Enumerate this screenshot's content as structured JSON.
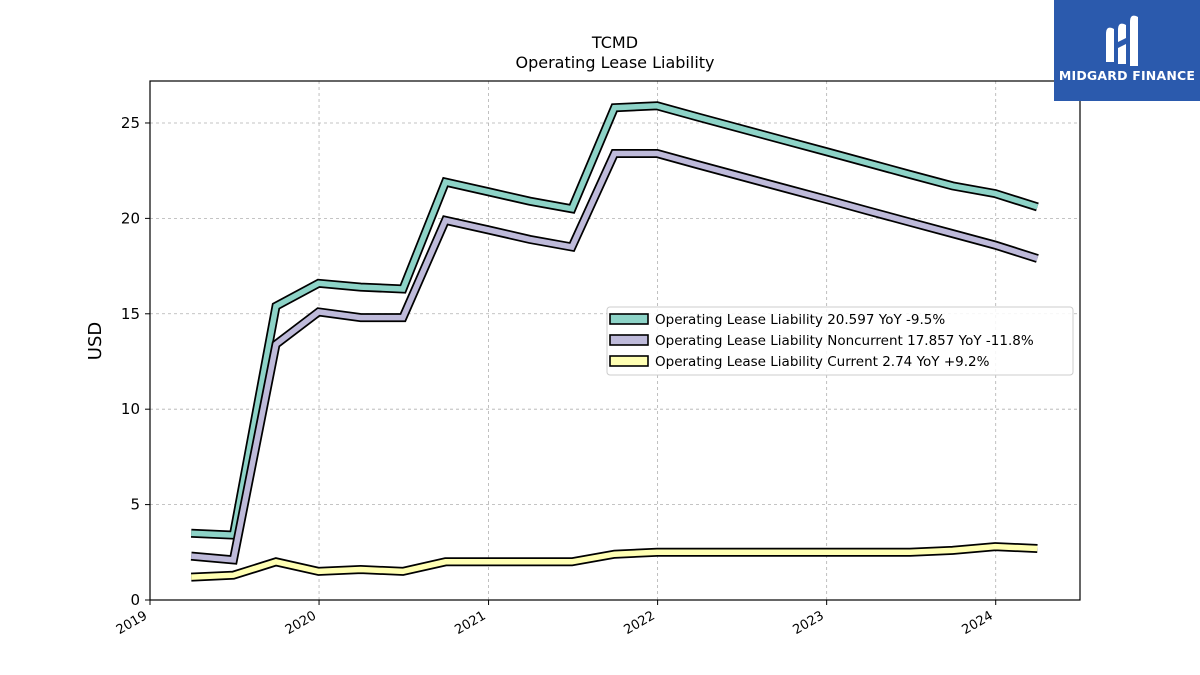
{
  "chart_data": {
    "type": "line",
    "title": "TCMD",
    "subtitle": "Operating Lease Liability",
    "xlabel": "",
    "ylabel": "USD",
    "x_ticks": [
      "2019",
      "2020",
      "2021",
      "2022",
      "2023",
      "2024"
    ],
    "y_ticks": [
      "0",
      "5",
      "10",
      "15",
      "20",
      "25"
    ],
    "xlim": [
      "2019-01-01",
      "2024-07-01"
    ],
    "ylim": [
      0,
      27.2
    ],
    "grid": true,
    "legend_position": "center-right",
    "x": [
      "2019-03-31",
      "2019-06-30",
      "2019-09-30",
      "2019-12-31",
      "2020-03-31",
      "2020-06-30",
      "2020-09-30",
      "2020-12-31",
      "2021-03-31",
      "2021-06-30",
      "2021-09-30",
      "2021-12-31",
      "2022-03-31",
      "2022-06-30",
      "2022-09-30",
      "2022-12-31",
      "2023-03-31",
      "2023-06-30",
      "2023-09-30",
      "2023-12-31",
      "2024-03-31"
    ],
    "series": [
      {
        "name": "Operating Lease Liability",
        "legend": "Operating Lease Liability  20.597 YoY -9.5%",
        "color": "#8dd3c7",
        "values": [
          3.5,
          3.4,
          15.4,
          16.6,
          16.4,
          16.3,
          21.9,
          21.4,
          20.9,
          20.5,
          25.8,
          25.9,
          25.3,
          24.7,
          24.1,
          23.5,
          22.9,
          22.3,
          21.7,
          21.3,
          20.6
        ]
      },
      {
        "name": "Operating Lease Liability Noncurrent",
        "legend": "Operating Lease Liability Noncurrent  17.857 YoY -11.8%",
        "color": "#bebada",
        "values": [
          2.3,
          2.1,
          13.4,
          15.1,
          14.8,
          14.8,
          19.9,
          19.4,
          18.9,
          18.5,
          23.4,
          23.4,
          22.8,
          22.2,
          21.6,
          21.0,
          20.4,
          19.8,
          19.2,
          18.6,
          17.9
        ]
      },
      {
        "name": "Operating Lease Liability Current",
        "legend": "Operating Lease Liability Current  2.74 YoY +9.2%",
        "color": "#ffffb3",
        "values": [
          1.2,
          1.3,
          2.0,
          1.5,
          1.6,
          1.5,
          2.0,
          2.0,
          2.0,
          2.0,
          2.4,
          2.5,
          2.5,
          2.5,
          2.5,
          2.5,
          2.5,
          2.5,
          2.6,
          2.8,
          2.7
        ]
      }
    ]
  },
  "logo": {
    "text": "MIDGARD FINANCE"
  }
}
